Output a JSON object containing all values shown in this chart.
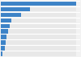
{
  "values": [
    21.5,
    8.2,
    5.7,
    3.0,
    2.5,
    2.0,
    1.7,
    1.4,
    1.1,
    0.5
  ],
  "bar_color": "#3d83c7",
  "background_color": "#f2f2f2",
  "bar_bg_color": "#e8e8e8",
  "grid_color": "#ffffff",
  "figsize": [
    1.0,
    0.71
  ],
  "dpi": 100
}
